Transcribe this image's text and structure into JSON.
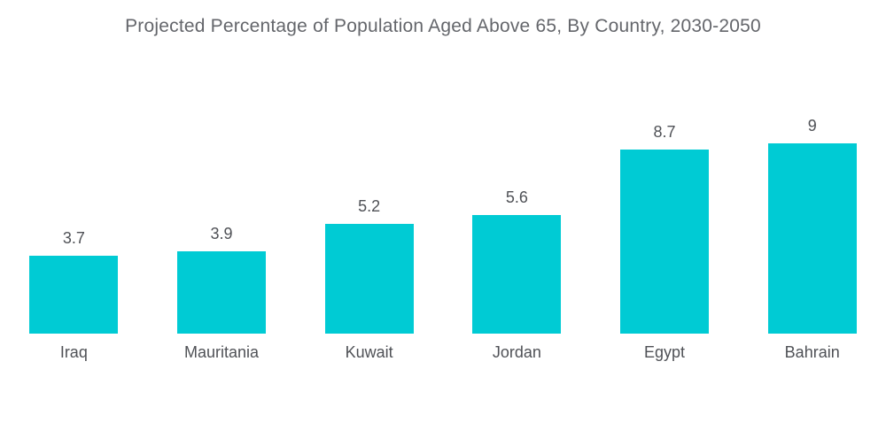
{
  "chart_data": {
    "type": "bar",
    "title": "Projected Percentage of Population Aged Above 65, By Country, 2030-2050",
    "categories": [
      "Iraq",
      "Mauritania",
      "Kuwait",
      "Jordan",
      "Egypt",
      "Bahrain"
    ],
    "values": [
      3.7,
      3.9,
      5.2,
      5.6,
      8.7,
      9
    ],
    "value_labels": [
      "3.7",
      "3.9",
      "5.2",
      "5.6",
      "8.7",
      "9"
    ],
    "xlabel": "",
    "ylabel": "",
    "ylim": [
      0,
      9
    ],
    "grid": false,
    "legend": "none",
    "axes_visible": false,
    "bar_color": "#00cbd4",
    "title_color": "#64666b",
    "label_color": "#4f5156",
    "background_color": "#ffffff"
  }
}
